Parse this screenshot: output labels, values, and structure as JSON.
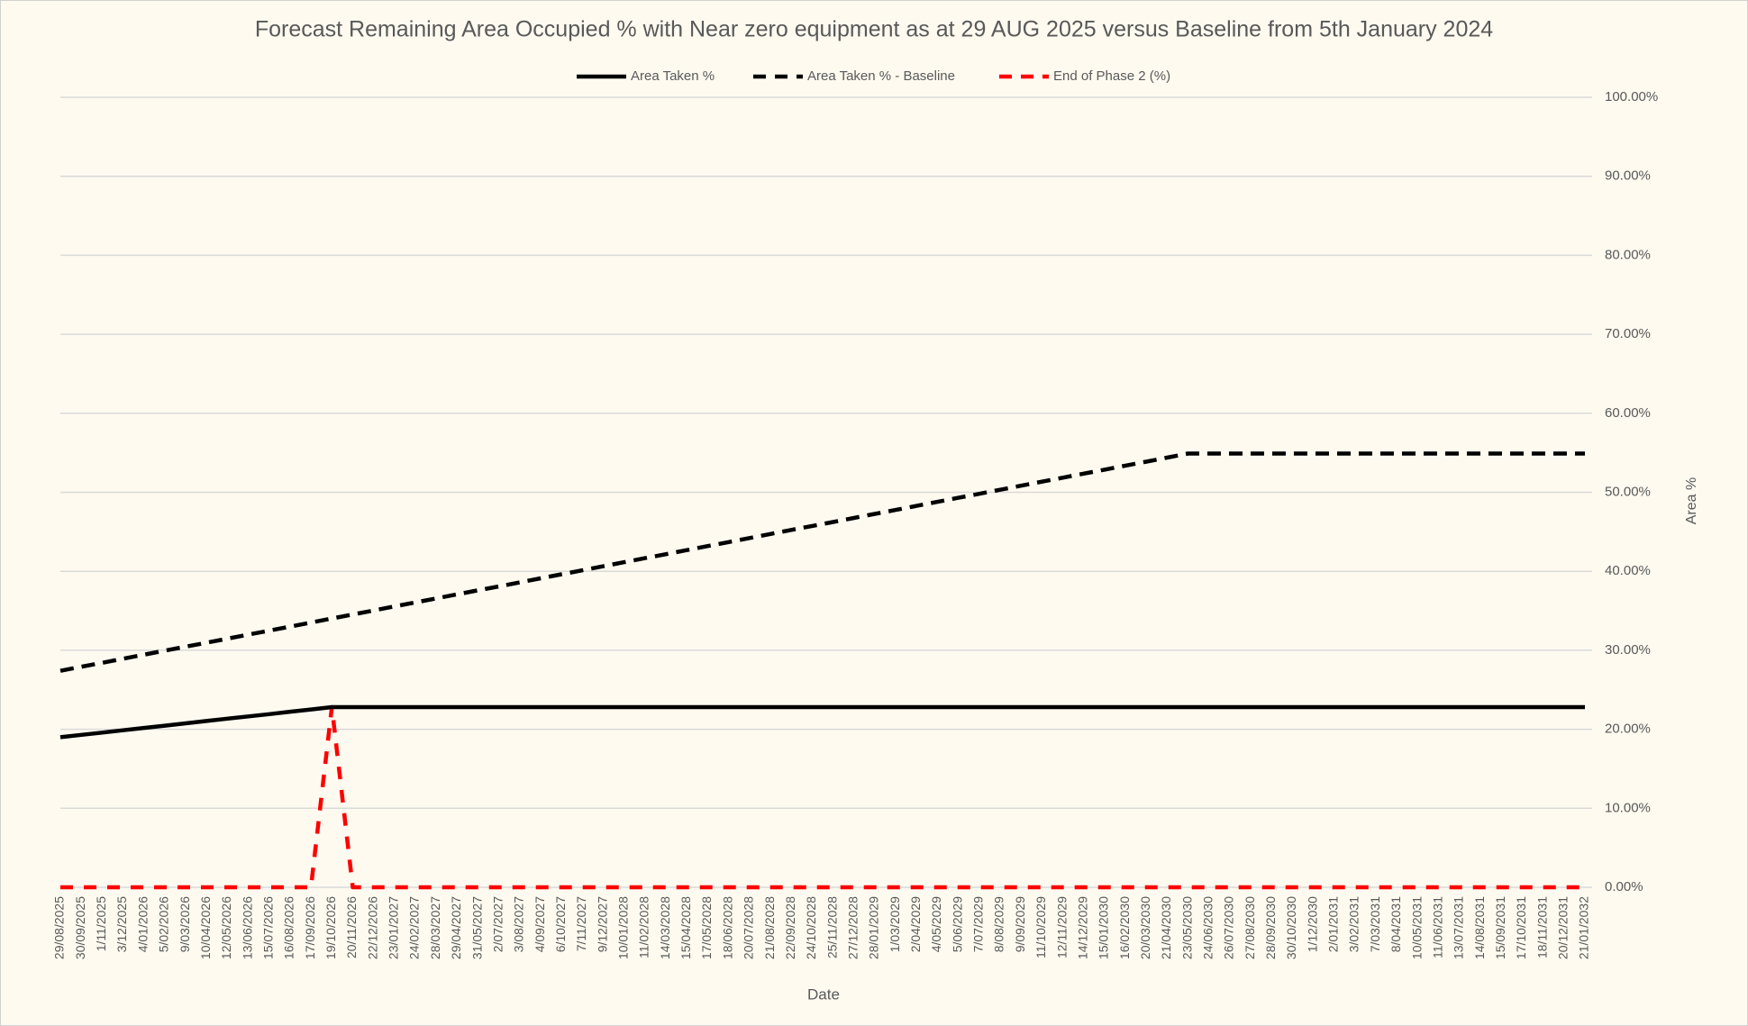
{
  "chart_data": {
    "type": "line",
    "title": "Forecast Remaining Area Occupied % with Near zero equipment as at 29 AUG 2025 versus Baseline from 5th January 2024",
    "x_label": "Date",
    "y_label": "Area %",
    "categories": [
      "29/08/2025",
      "30/09/2025",
      "1/11/2025",
      "3/12/2025",
      "4/01/2026",
      "5/02/2026",
      "9/03/2026",
      "10/04/2026",
      "12/05/2026",
      "13/06/2026",
      "15/07/2026",
      "16/08/2026",
      "17/09/2026",
      "19/10/2026",
      "20/11/2026",
      "22/12/2026",
      "23/01/2027",
      "24/02/2027",
      "28/03/2027",
      "29/04/2027",
      "31/05/2027",
      "2/07/2027",
      "3/08/2027",
      "4/09/2027",
      "6/10/2027",
      "7/11/2027",
      "9/12/2027",
      "10/01/2028",
      "11/02/2028",
      "14/03/2028",
      "15/04/2028",
      "17/05/2028",
      "18/06/2028",
      "20/07/2028",
      "21/08/2028",
      "22/09/2028",
      "24/10/2028",
      "25/11/2028",
      "27/12/2028",
      "28/01/2029",
      "1/03/2029",
      "2/04/2029",
      "4/05/2029",
      "5/06/2029",
      "7/07/2029",
      "8/08/2029",
      "9/09/2029",
      "11/10/2029",
      "12/11/2029",
      "14/12/2029",
      "15/01/2030",
      "16/02/2030",
      "20/03/2030",
      "21/04/2030",
      "23/05/2030",
      "24/06/2030",
      "26/07/2030",
      "27/08/2030",
      "28/09/2030",
      "30/10/2030",
      "1/12/2030",
      "2/01/2031",
      "3/02/2031",
      "7/03/2031",
      "8/04/2031",
      "10/05/2031",
      "11/06/2031",
      "13/07/2031",
      "14/08/2031",
      "15/09/2031",
      "17/10/2031",
      "18/11/2031",
      "20/12/2031",
      "21/01/2032"
    ],
    "series": [
      {
        "name": "Area Taken %",
        "color": "#000000",
        "dash": false,
        "values": [
          19,
          19.29,
          19.58,
          19.88,
          20.17,
          20.46,
          20.75,
          21.05,
          21.34,
          21.63,
          21.92,
          22.22,
          22.51,
          22.8,
          22.8,
          22.8,
          22.8,
          22.8,
          22.8,
          22.8,
          22.8,
          22.8,
          22.8,
          22.8,
          22.8,
          22.8,
          22.8,
          22.8,
          22.8,
          22.8,
          22.8,
          22.8,
          22.8,
          22.8,
          22.8,
          22.8,
          22.8,
          22.8,
          22.8,
          22.8,
          22.8,
          22.8,
          22.8,
          22.8,
          22.8,
          22.8,
          22.8,
          22.8,
          22.8,
          22.8,
          22.8,
          22.8,
          22.8,
          22.8,
          22.8,
          22.8,
          22.8,
          22.8,
          22.8,
          22.8,
          22.8,
          22.8,
          22.8,
          22.8,
          22.8,
          22.8,
          22.8,
          22.8,
          22.8,
          22.8,
          22.8,
          22.8,
          22.8,
          22.8
        ]
      },
      {
        "name": "Area Taken % - Baseline",
        "color": "#000000",
        "dash": true,
        "values": [
          27.4,
          27.91,
          28.42,
          28.93,
          29.44,
          29.95,
          30.46,
          30.96,
          31.47,
          31.98,
          32.49,
          33.0,
          33.51,
          34.02,
          34.53,
          35.04,
          35.55,
          36.06,
          36.57,
          37.08,
          37.59,
          38.09,
          38.6,
          39.11,
          39.62,
          40.13,
          40.64,
          41.15,
          41.66,
          42.17,
          42.68,
          43.19,
          43.7,
          44.21,
          44.72,
          45.23,
          45.73,
          46.24,
          46.75,
          47.26,
          47.77,
          48.28,
          48.79,
          49.3,
          49.81,
          50.32,
          50.83,
          51.34,
          51.85,
          52.36,
          52.86,
          53.37,
          53.88,
          54.39,
          54.9,
          54.9,
          54.9,
          54.9,
          54.9,
          54.9,
          54.9,
          54.9,
          54.9,
          54.9,
          54.9,
          54.9,
          54.9,
          54.9,
          54.9,
          54.9,
          54.9,
          54.9,
          54.9,
          54.9
        ]
      },
      {
        "name": "End of Phase 2 (%)",
        "color": "#ff0000",
        "dash": true,
        "values": [
          0,
          0,
          0,
          0,
          0,
          0,
          0,
          0,
          0,
          0,
          0,
          0,
          0,
          22.8,
          0,
          0,
          0,
          0,
          0,
          0,
          0,
          0,
          0,
          0,
          0,
          0,
          0,
          0,
          0,
          0,
          0,
          0,
          0,
          0,
          0,
          0,
          0,
          0,
          0,
          0,
          0,
          0,
          0,
          0,
          0,
          0,
          0,
          0,
          0,
          0,
          0,
          0,
          0,
          0,
          0,
          0,
          0,
          0,
          0,
          0,
          0,
          0,
          0,
          0,
          0,
          0,
          0,
          0,
          0,
          0,
          0,
          0,
          0,
          0
        ]
      }
    ],
    "ylim": [
      0,
      100
    ],
    "yticks": [
      {
        "value": 0,
        "label": "0.00%"
      },
      {
        "value": 10,
        "label": "10.00%"
      },
      {
        "value": 20,
        "label": "20.00%"
      },
      {
        "value": 30,
        "label": "30.00%"
      },
      {
        "value": 40,
        "label": "40.00%"
      },
      {
        "value": 50,
        "label": "50.00%"
      },
      {
        "value": 60,
        "label": "60.00%"
      },
      {
        "value": 70,
        "label": "70.00%"
      },
      {
        "value": 80,
        "label": "80.00%"
      },
      {
        "value": 90,
        "label": "90.00%"
      },
      {
        "value": 100,
        "label": "100.00%"
      }
    ],
    "y_axis_position": "right",
    "grid": true,
    "legend_position": "top"
  }
}
